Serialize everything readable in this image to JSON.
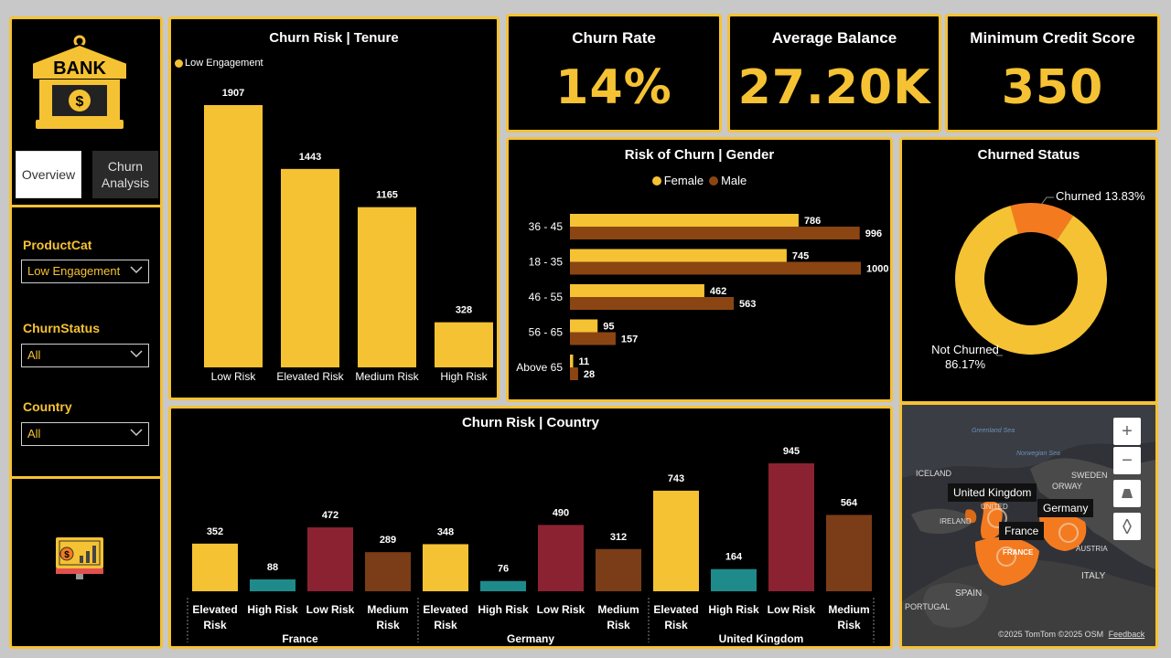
{
  "sidebar": {
    "logo_text": "BANK",
    "tabs": [
      {
        "label": "Overview"
      },
      {
        "label": "Churn Analysis"
      }
    ],
    "filters": [
      {
        "label": "ProductCat",
        "value": "Low Engagement"
      },
      {
        "label": "ChurnStatus",
        "value": "All"
      },
      {
        "label": "Country",
        "value": "All"
      }
    ]
  },
  "kpis": [
    {
      "title": "Churn Rate",
      "value": "14%"
    },
    {
      "title": "Average Balance",
      "value": "27.20K"
    },
    {
      "title": "Minimum Credit Score",
      "value": "350"
    }
  ],
  "colors": {
    "accent": "#f5c233",
    "male": "#8b4513",
    "teal": "#1e8a8a",
    "maroon": "#8b2232",
    "brown": "#7a3d17",
    "churned": "#f47a20"
  },
  "chart_data": [
    {
      "id": "tenure",
      "type": "bar",
      "title": "Churn Risk | Tenure",
      "legend": [
        "Low Engagement"
      ],
      "categories": [
        "Low Risk",
        "Elevated Risk",
        "Medium Risk",
        "High Risk"
      ],
      "values": [
        1907,
        1443,
        1165,
        328
      ],
      "ylim": [
        0,
        1907
      ]
    },
    {
      "id": "gender",
      "type": "bar",
      "orientation": "horizontal",
      "title": "Risk of Churn | Gender",
      "categories": [
        "36 - 45",
        "18 - 35",
        "46 - 55",
        "56 - 65",
        "Above 65"
      ],
      "series": [
        {
          "name": "Female",
          "values": [
            786,
            745,
            462,
            95,
            11
          ]
        },
        {
          "name": "Male",
          "values": [
            996,
            1000,
            563,
            157,
            28
          ]
        }
      ],
      "xlim": [
        0,
        1000
      ]
    },
    {
      "id": "status",
      "type": "pie",
      "title": "Churned Status",
      "slices": [
        {
          "label": "Churned",
          "percent": "13.83%",
          "value": 13.83
        },
        {
          "label": "Not Churned",
          "percent": "86.17%",
          "value": 86.17
        }
      ]
    },
    {
      "id": "country",
      "type": "bar",
      "title": "Churn Risk | Country",
      "groups": [
        "France",
        "Germany",
        "United Kingdom"
      ],
      "risk_labels": [
        "Elevated Risk",
        "High Risk",
        "Low Risk",
        "Medium Risk"
      ],
      "values": [
        [
          352,
          88,
          472,
          289
        ],
        [
          348,
          76,
          490,
          312
        ],
        [
          743,
          164,
          945,
          564
        ]
      ],
      "ylim": [
        0,
        945
      ]
    }
  ],
  "map": {
    "labels": {
      "uk": "United Kingdom",
      "germany": "Germany",
      "france": "France",
      "france_region": "FRANCE",
      "iceland": "ICELAND",
      "ireland": "IRELAND",
      "norway": "ORWAY",
      "sweden": "SWEDEN",
      "italy": "ITALY",
      "spain": "SPAIN",
      "portugal": "PORTUGAL",
      "austria": "AUSTRIA",
      "greenland_sea": "Greenland Sea",
      "norwegian_sea": "Norwegian Sea",
      "uk_basemap": "UNITED"
    },
    "attribution": "©2025 TomTom  ©2025 OSM",
    "feedback": "Feedback",
    "zoom_in": "+",
    "zoom_out": "−"
  }
}
